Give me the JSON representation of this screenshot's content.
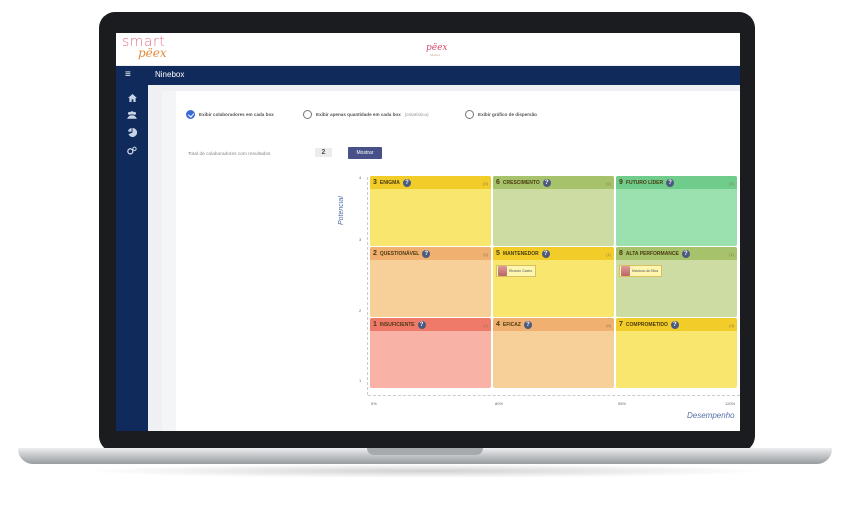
{
  "header": {
    "logo_line1": "smart",
    "logo_line2": "pëex",
    "center_logo": "pëex",
    "center_logo_sub": "Makes"
  },
  "nav": {
    "menu_icon": "≡",
    "title": "Ninebox"
  },
  "sidebar": {
    "items": [
      {
        "icon": "home-icon"
      },
      {
        "icon": "users-icon"
      },
      {
        "icon": "chart-icon"
      },
      {
        "icon": "settings-icon"
      }
    ]
  },
  "options": {
    "opt1_label": "Exibir colaboradores em cada box",
    "opt2_label": "Exibir apenas quantidade em cada box",
    "opt2_suffix": "(estatística)",
    "opt3_label": "Exibir gráfico de dispersão",
    "selected": "opt1"
  },
  "summary": {
    "total_label": "Total de colaboradores com resultados",
    "total_value": "2",
    "show_button": "Mostrar"
  },
  "chart": {
    "y_label": "Potencial",
    "x_label": "Desempenho",
    "y_ticks": [
      "4",
      "3",
      "2",
      "1"
    ],
    "x_ticks": [
      "0%",
      "80%",
      "95%",
      "120%"
    ]
  },
  "boxes": [
    {
      "num": "3",
      "name": "ENIGMA",
      "count": "(0)",
      "header_color": "#f2cd2a",
      "body_color": "#f8e66e",
      "people": []
    },
    {
      "num": "6",
      "name": "CRESCIMENTO",
      "count": "(0)",
      "header_color": "#a6c26a",
      "body_color": "#cddca2",
      "people": []
    },
    {
      "num": "9",
      "name": "FUTURO LÍDER",
      "count": "(0)",
      "header_color": "#6fcc8a",
      "body_color": "#9be0af",
      "people": []
    },
    {
      "num": "2",
      "name": "QUESTIONÁVEL",
      "count": "(0)",
      "header_color": "#f0b070",
      "body_color": "#f6cf99",
      "people": []
    },
    {
      "num": "5",
      "name": "MANTENEDOR",
      "count": "(1)",
      "header_color": "#f2cd2a",
      "body_color": "#f8e66e",
      "people": [
        {
          "name": "Ricardo Castro"
        }
      ]
    },
    {
      "num": "8",
      "name": "ALTA PERFORMANCE",
      "count": "(1)",
      "header_color": "#a6c26a",
      "body_color": "#cddca2",
      "people": [
        {
          "name": "Mariana da Silva"
        }
      ]
    },
    {
      "num": "1",
      "name": "INSUFICIENTE",
      "count": "(0)",
      "header_color": "#f07a6a",
      "body_color": "#f9b2a6",
      "people": []
    },
    {
      "num": "4",
      "name": "EFICAZ",
      "count": "(0)",
      "header_color": "#f0b070",
      "body_color": "#f6cf99",
      "people": []
    },
    {
      "num": "7",
      "name": "COMPROMETIDO",
      "count": "(0)",
      "header_color": "#f2cd2a",
      "body_color": "#f8e66e",
      "people": []
    }
  ]
}
